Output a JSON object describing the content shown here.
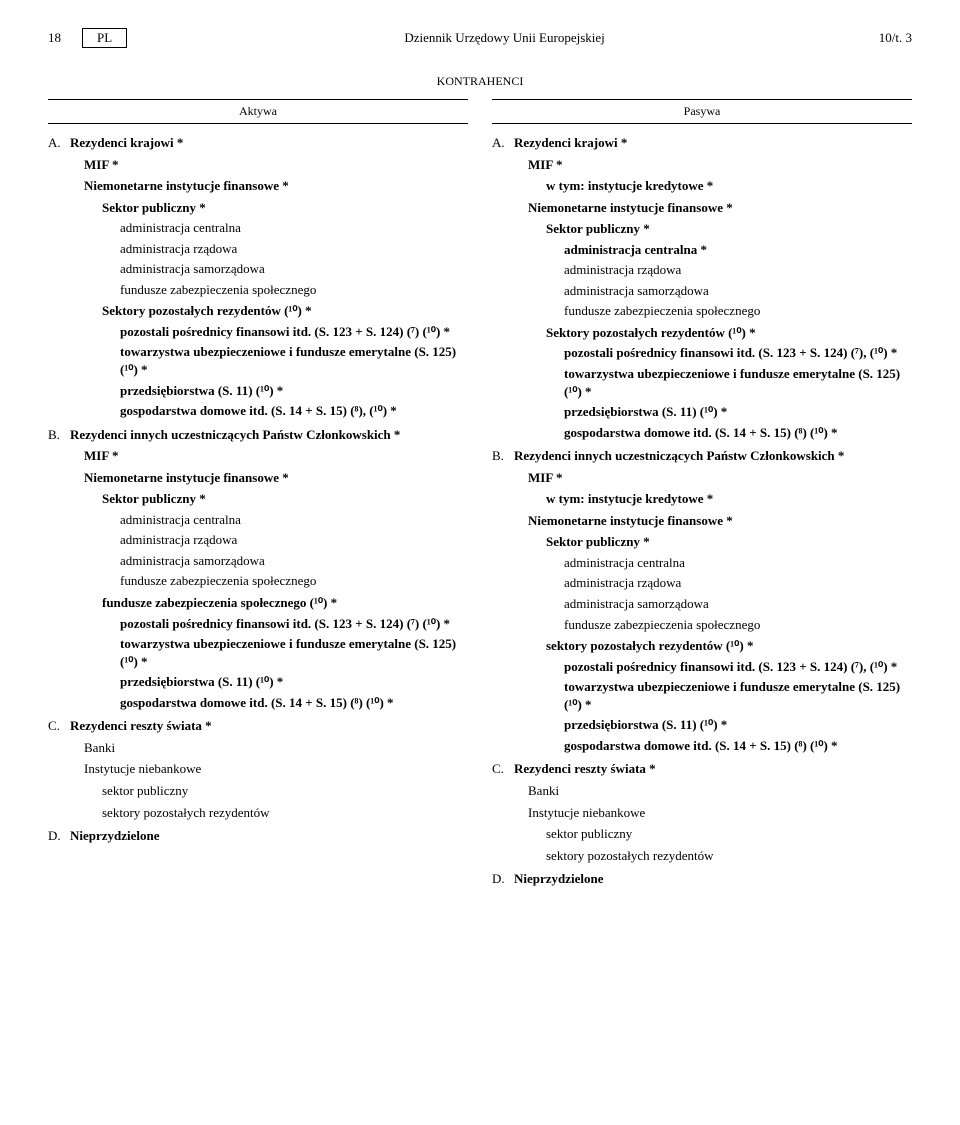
{
  "header": {
    "pageLeft": "18",
    "lang": "PL",
    "journal": "Dziennik Urzędowy Unii Europejskiej",
    "vol": "10/t. 3"
  },
  "sectionTitle": "KONTRAHENCI",
  "left": {
    "heading": "Aktywa",
    "A": {
      "lead": "A.",
      "txt": "Rezydenci krajowi *"
    },
    "A_mif": "MIF *",
    "A_nif": "Niemonetarne instytucje finansowe *",
    "A_sp": "Sektor publiczny *",
    "A_ac": "administracja centralna",
    "A_ar": "administracja rządowa",
    "A_as": "administracja samorządowa",
    "A_fz": "fundusze zabezpieczenia społecznego",
    "A_spr": "Sektory pozostałych rezydentów (¹⁰) *",
    "A_ppf": "pozostali pośrednicy finansowi itd. (S. 123 + S. 124) (⁷) (¹⁰) *",
    "A_tue": "towarzystwa ubezpieczeniowe i fundusze emerytalne (S. 125) (¹⁰) *",
    "A_prz": "przedsiębiorstwa (S. 11) (¹⁰) *",
    "A_gd": "gospodarstwa domowe itd. (S. 14 + S. 15) (⁸), (¹⁰) *",
    "B": {
      "lead": "B.",
      "txt": "Rezydenci innych uczestniczących Państw Członkowskich *"
    },
    "B_mif": "MIF *",
    "B_nif": "Niemonetarne instytucje finansowe *",
    "B_sp": "Sektor publiczny *",
    "B_ac": "administracja centralna",
    "B_ar": "administracja rządowa",
    "B_as": "administracja samorządowa",
    "B_fz": "fundusze zabezpieczenia społecznego",
    "B_fzs": "fundusze zabezpieczenia społecznego (¹⁰) *",
    "B_ppf": "pozostali pośrednicy finansowi itd. (S. 123 + S. 124) (⁷) (¹⁰) *",
    "B_tue": "towarzystwa ubezpieczeniowe i fundusze emerytalne (S. 125) (¹⁰) *",
    "B_prz": "przedsiębiorstwa (S. 11) (¹⁰) *",
    "B_gd": "gospodarstwa domowe itd. (S. 14 + S. 15) (⁸) (¹⁰) *",
    "C": {
      "lead": "C.",
      "txt": "Rezydenci reszty świata *"
    },
    "C_banki": "Banki",
    "C_inb": "Instytucje niebankowe",
    "C_spub": "sektor publiczny",
    "C_spr": "sektory pozostałych rezydentów",
    "D": {
      "lead": "D.",
      "txt": "Nieprzydzielone"
    }
  },
  "right": {
    "heading": "Pasywa",
    "A": {
      "lead": "A.",
      "txt": "Rezydenci krajowi *"
    },
    "A_mif": "MIF *",
    "A_wtym": "w tym: instytucje kredytowe *",
    "A_nif": "Niemonetarne instytucje finansowe *",
    "A_sp": "Sektor publiczny *",
    "A_ac": "administracja centralna *",
    "A_ar": "administracja rządowa",
    "A_as": "administracja samorządowa",
    "A_fz": "fundusze zabezpieczenia społecznego",
    "A_spr": "Sektory pozostałych rezydentów (¹⁰) *",
    "A_ppf": "pozostali pośrednicy finansowi itd. (S. 123 + S. 124) (⁷), (¹⁰) *",
    "A_tue": "towarzystwa ubezpieczeniowe i fundusze emerytalne (S. 125) (¹⁰) *",
    "A_prz": "przedsiębiorstwa (S. 11) (¹⁰) *",
    "A_gd": "gospodarstwa domowe itd. (S. 14 + S. 15) (⁸) (¹⁰) *",
    "B": {
      "lead": "B.",
      "txt": "Rezydenci innych uczestniczących Państw Członkowskich *"
    },
    "B_mif": "MIF *",
    "B_wtym": "w tym: instytucje kredytowe *",
    "B_nif": "Niemonetarne instytucje finansowe *",
    "B_sp": "Sektor publiczny *",
    "B_ac": "administracja centralna",
    "B_ar": "administracja rządowa",
    "B_as": "administracja samorządowa",
    "B_fz": "fundusze zabezpieczenia społecznego",
    "B_spr": "sektory pozostałych rezydentów (¹⁰) *",
    "B_ppf": "pozostali pośrednicy finansowi itd. (S. 123 + S. 124) (⁷), (¹⁰) *",
    "B_tue": "towarzystwa ubezpieczeniowe i fundusze emerytalne (S. 125) (¹⁰) *",
    "B_prz": "przedsiębiorstwa (S. 11) (¹⁰) *",
    "B_gd": "gospodarstwa domowe itd. (S. 14 + S. 15) (⁸) (¹⁰) *",
    "C": {
      "lead": "C.",
      "txt": "Rezydenci reszty świata *"
    },
    "C_banki": "Banki",
    "C_inb": "Instytucje niebankowe",
    "C_spub": "sektor publiczny",
    "C_spr": "sektory pozostałych rezydentów",
    "D": {
      "lead": "D.",
      "txt": "Nieprzydzielone"
    }
  }
}
